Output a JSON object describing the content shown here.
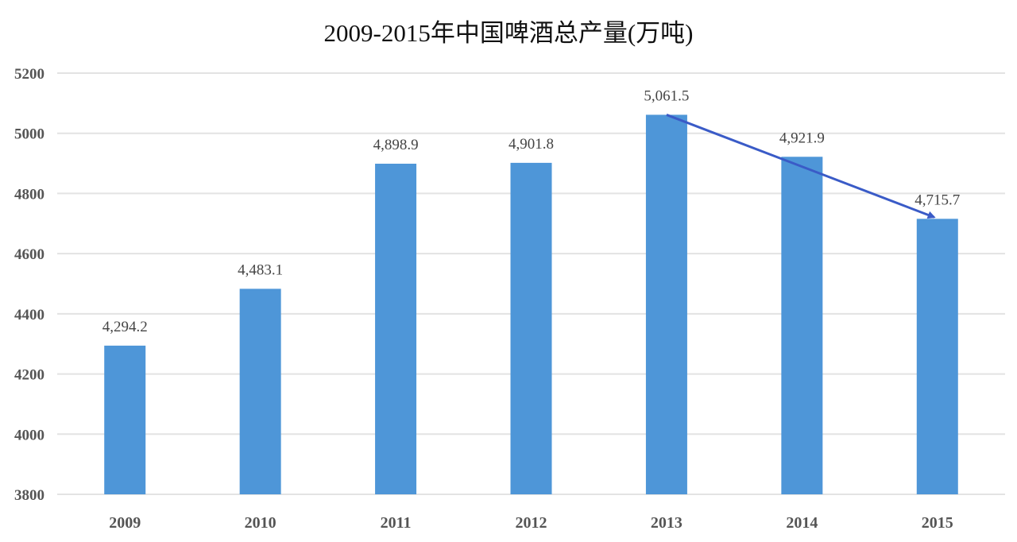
{
  "chart_data": {
    "type": "bar",
    "title": "2009-2015年中国啤酒总产量(万吨)",
    "xlabel": "",
    "ylabel": "",
    "categories": [
      "2009",
      "2010",
      "2011",
      "2012",
      "2013",
      "2014",
      "2015"
    ],
    "values": [
      4294.2,
      4483.1,
      4898.9,
      4901.8,
      5061.5,
      4921.9,
      4715.7
    ],
    "data_labels": [
      "4,294.2",
      "4,483.1",
      "4,898.9",
      "4,901.8",
      "5,061.5",
      "4,921.9",
      "4,715.7"
    ],
    "ylim": [
      3800,
      5200
    ],
    "yticks": [
      3800,
      4000,
      4200,
      4400,
      4600,
      4800,
      5000,
      5200
    ],
    "grid": true,
    "legend": null,
    "bar_color": "#4e96d8",
    "annotations": [
      {
        "type": "arrow",
        "from": "2013",
        "to": "2015",
        "color": "#3a5bc7",
        "meaning": "declining trend"
      }
    ]
  }
}
